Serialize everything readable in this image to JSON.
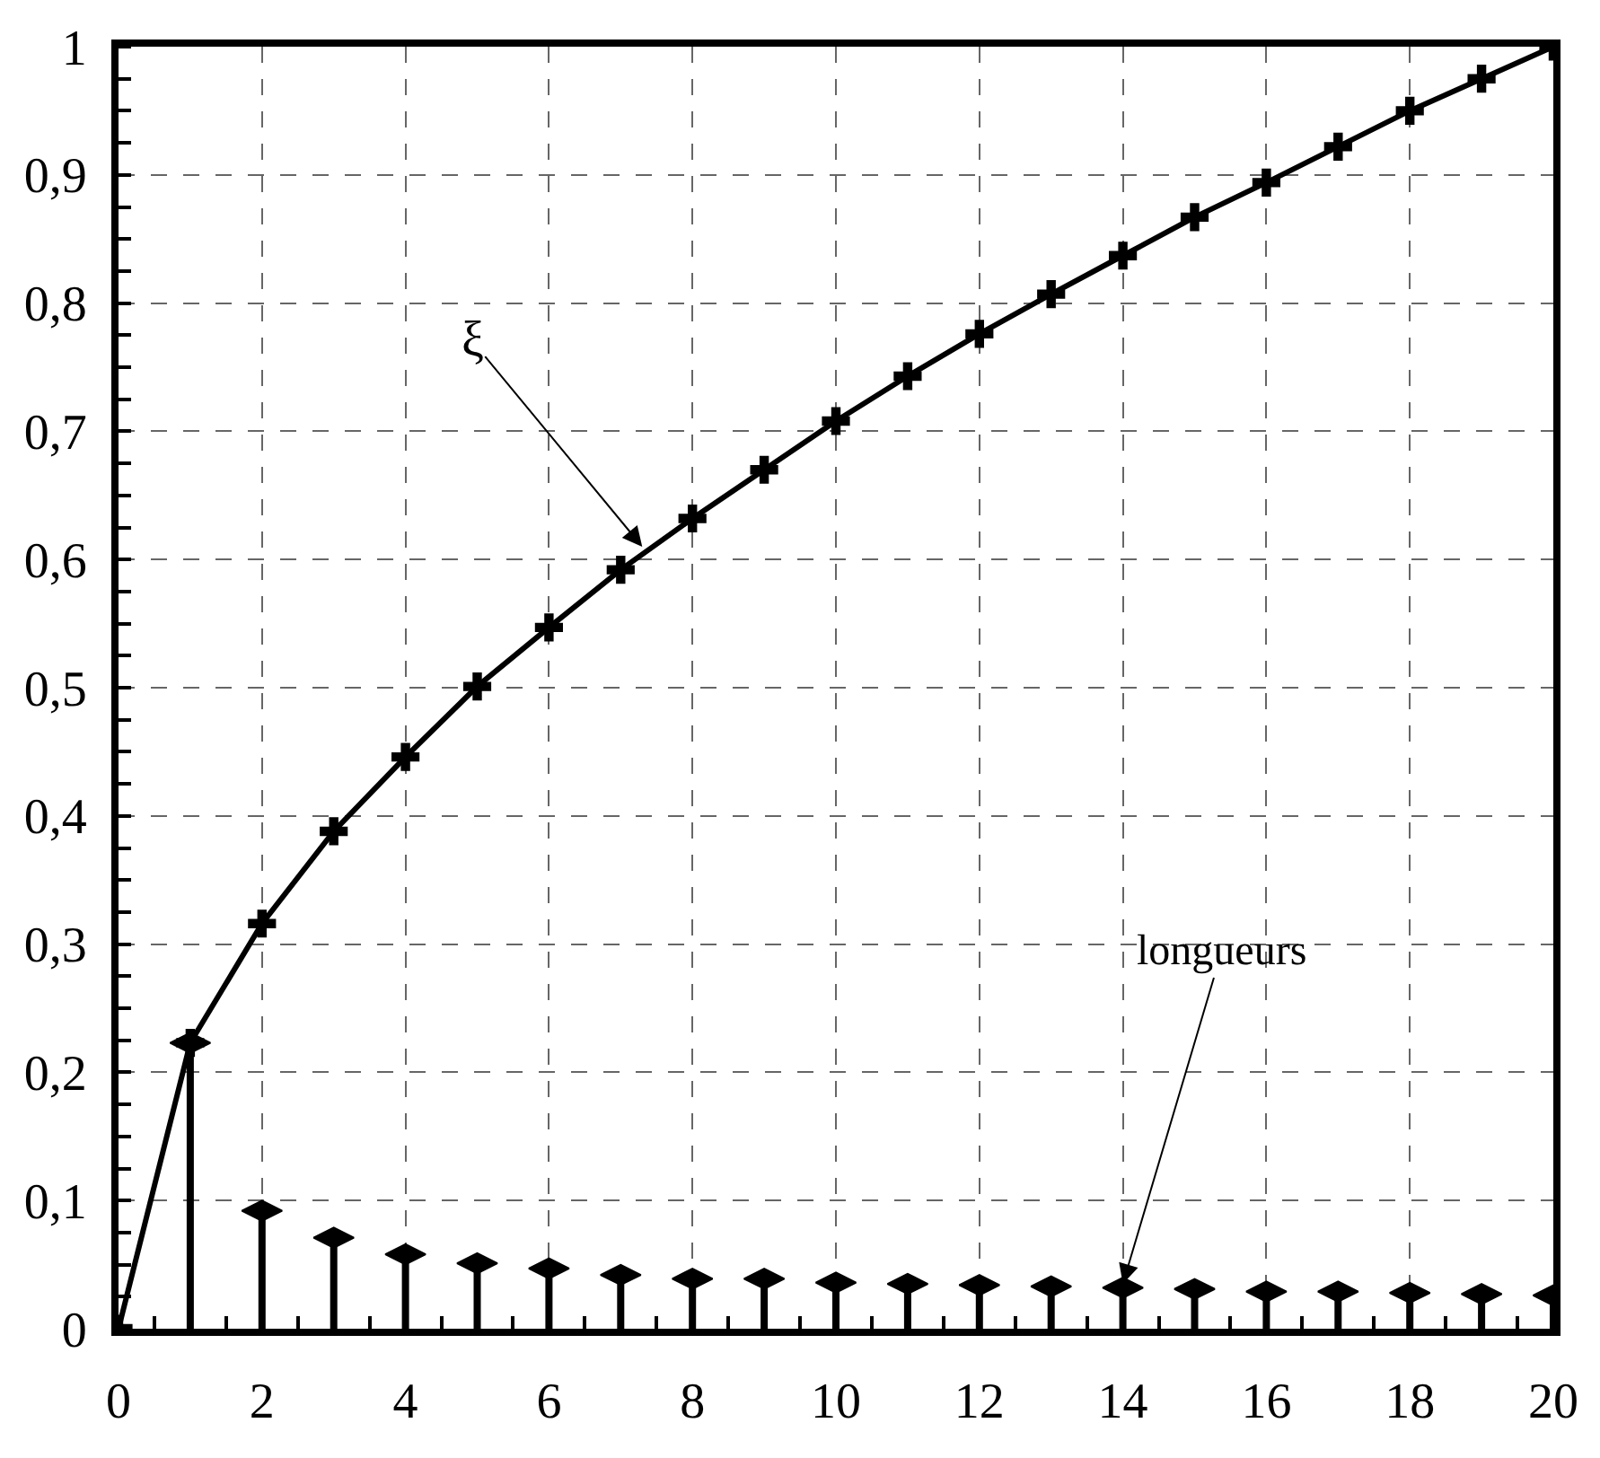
{
  "chart_data": {
    "type": "line",
    "x": [
      0,
      1,
      2,
      3,
      4,
      5,
      6,
      7,
      8,
      9,
      10,
      11,
      12,
      13,
      14,
      15,
      16,
      17,
      18,
      19,
      20
    ],
    "series": [
      {
        "color": "#000000",
        "marker": "cross",
        "values": [
          0,
          0.223,
          0.316,
          0.388,
          0.446,
          0.501,
          0.547,
          0.592,
          0.632,
          0.67,
          0.708,
          0.743,
          0.776,
          0.807,
          0.837,
          0.867,
          0.894,
          0.922,
          0.95,
          0.975,
          1.0
        ]
      },
      {
        "type": "lollipop",
        "color": "#000000",
        "x": [
          1,
          2,
          3,
          4,
          5,
          6,
          7,
          8,
          9,
          10,
          11,
          12,
          13,
          14,
          15,
          16,
          17,
          18,
          19,
          20
        ],
        "values": [
          0.223,
          0.092,
          0.071,
          0.058,
          0.051,
          0.047,
          0.042,
          0.039,
          0.039,
          0.036,
          0.035,
          0.034,
          0.033,
          0.032,
          0.031,
          0.029,
          0.029,
          0.028,
          0.027,
          0.026
        ]
      }
    ],
    "annotations": [
      {
        "text": "ξ",
        "x": 7.3,
        "y": 0.61
      },
      {
        "text": "longueurs",
        "x": 14,
        "y": 0.035
      }
    ],
    "xlim": [
      0,
      20
    ],
    "ylim": [
      0,
      1
    ],
    "xticks": [
      0,
      2,
      4,
      6,
      8,
      10,
      12,
      14,
      16,
      18,
      20
    ],
    "yticks": [
      0,
      {
        "value": 0.1,
        "label": "0,1"
      },
      {
        "value": 0.2,
        "label": "0,2"
      },
      {
        "value": 0.3,
        "label": "0,3"
      },
      {
        "value": 0.4,
        "label": "0,4"
      },
      {
        "value": 0.5,
        "label": "0,5"
      },
      {
        "value": 0.6,
        "label": "0,6"
      },
      {
        "value": 0.7,
        "label": "0,7"
      },
      {
        "value": 0.8,
        "label": "0,8"
      },
      {
        "value": 0.9,
        "label": "0,9"
      },
      1
    ],
    "grid": true
  }
}
